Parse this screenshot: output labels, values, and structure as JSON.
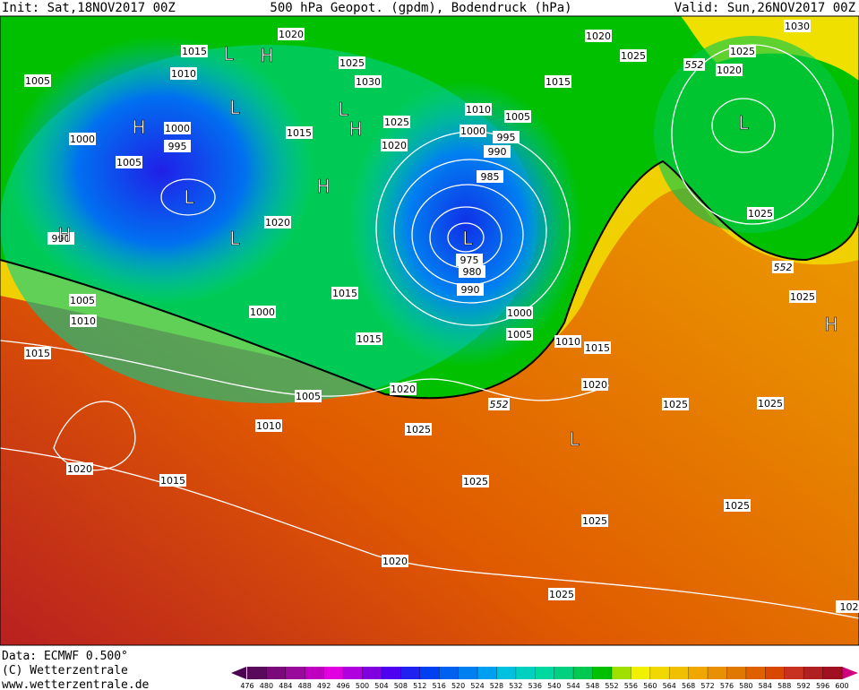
{
  "header": {
    "init": "Init: Sat,18NOV2017 00Z",
    "title": "500 hPa Geopot. (gpdm), Bodendruck (hPa)",
    "valid": "Valid: Sun,26NOV2017 00Z"
  },
  "isobar_labels": [
    1020,
    1015,
    1010,
    1005,
    1025,
    1030,
    1000,
    995,
    1000,
    1005,
    1015,
    1025,
    1020,
    1010,
    1005,
    1000,
    995,
    990,
    985,
    975,
    980,
    990,
    1020,
    1015,
    1000,
    1005,
    1010,
    1015,
    1015,
    1000,
    1005,
    1010,
    1015,
    1020,
    1020,
    1005,
    1010,
    1025,
    1025,
    1025,
    1020,
    1015,
    1025,
    1025,
    1025,
    1020,
    1025,
    1020,
    1025,
    1015,
    1030,
    1025,
    1020,
    1025,
    1025,
    990,
    102
  ],
  "geopotential_labels": [
    552,
    552,
    552
  ],
  "pressure_centers": [
    "L",
    "H",
    "L",
    "L",
    "H",
    "H",
    "L",
    "L",
    "H",
    "H",
    "L",
    "L",
    "H",
    "L"
  ],
  "footer": {
    "data": "Data: ECMWF  0.500°",
    "copyright": "(C) Wetterzentrale",
    "url": "www.wetterzentrale.de"
  },
  "colorbar": {
    "ticks": [
      476,
      480,
      484,
      488,
      492,
      496,
      500,
      504,
      508,
      512,
      516,
      520,
      524,
      528,
      532,
      536,
      540,
      544,
      548,
      552,
      556,
      560,
      564,
      568,
      572,
      576,
      580,
      584,
      588,
      592,
      596,
      600
    ],
    "colors": [
      "#5a0a5a",
      "#7a0a7a",
      "#9a0a9a",
      "#c000c0",
      "#e000e0",
      "#b000e0",
      "#8000e0",
      "#5000f0",
      "#2020f0",
      "#0040f0",
      "#0060f0",
      "#0080f0",
      "#00a0f0",
      "#00c0e0",
      "#00d0c0",
      "#00d8a0",
      "#00d080",
      "#00c850",
      "#00c000",
      "#a0e000",
      "#f0f000",
      "#f0d800",
      "#f0c000",
      "#f0a800",
      "#e89000",
      "#e07800",
      "#e06000",
      "#d84800",
      "#c83020",
      "#b02020",
      "#a01020"
    ]
  }
}
